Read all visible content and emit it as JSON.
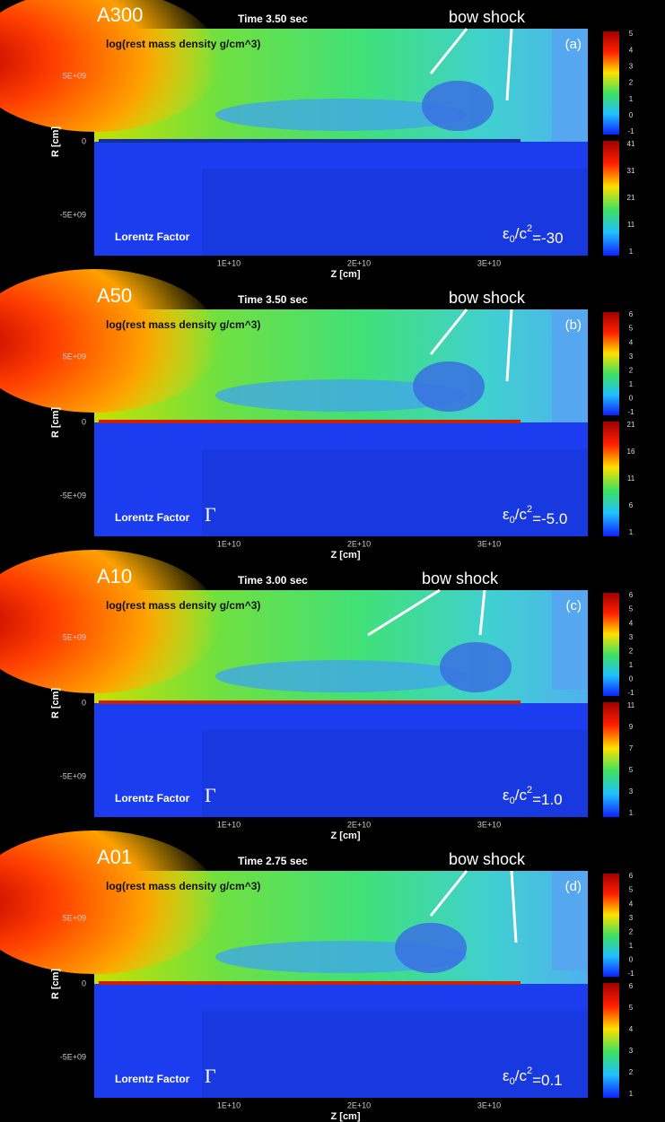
{
  "panels": [
    {
      "title": "A300",
      "time": "Time 3.50 sec",
      "annotation": "bow shock",
      "letter": "(a)",
      "density_label": "log(rest mass density g/cm^3)",
      "lorentz_label": "Lorentz Factor",
      "eps": [
        "ε",
        "0",
        "/c",
        "2",
        "=-30"
      ],
      "yticks": [
        "5E+09",
        "0",
        "-5E+09"
      ],
      "ylabel": "R [cm]",
      "xticks": [
        "1E+10",
        "2E+10",
        "3E+10"
      ],
      "xlabel": "Z [cm]",
      "density_colorbar": [
        "5",
        "4",
        "3",
        "2",
        "1",
        "0",
        "-1"
      ],
      "lorentz_colorbar": [
        "41",
        "31",
        "21",
        "11",
        "1"
      ]
    },
    {
      "title": "A50",
      "time": "Time 3.50 sec",
      "annotation": "bow shock",
      "letter": "(b)",
      "density_label": "log(rest mass density g/cm^3)",
      "lorentz_label": "Lorentz Factor",
      "gamma": "Γ",
      "eps": [
        "ε",
        "0",
        "/c",
        "2",
        "=-5.0"
      ],
      "yticks": [
        "5E+09",
        "0",
        "-5E+09"
      ],
      "ylabel": "R [cm]",
      "xticks": [
        "1E+10",
        "2E+10",
        "3E+10"
      ],
      "xlabel": "Z [cm]",
      "density_colorbar": [
        "6",
        "5",
        "4",
        "3",
        "2",
        "1",
        "0",
        "-1"
      ],
      "lorentz_colorbar": [
        "21",
        "16",
        "11",
        "6",
        "1"
      ]
    },
    {
      "title": "A10",
      "time": "Time 3.00 sec",
      "annotation": "bow shock",
      "letter": "(c)",
      "density_label": "log(rest mass density g/cm^3)",
      "lorentz_label": "Lorentz Factor",
      "gamma": "Γ",
      "eps": [
        "ε",
        "0",
        "/c",
        "2",
        "=1.0"
      ],
      "yticks": [
        "5E+09",
        "0",
        "-5E+09"
      ],
      "ylabel": "R [cm]",
      "xticks": [
        "1E+10",
        "2E+10",
        "3E+10"
      ],
      "xlabel": "Z [cm]",
      "density_colorbar": [
        "6",
        "5",
        "4",
        "3",
        "2",
        "1",
        "0",
        "-1"
      ],
      "lorentz_colorbar": [
        "11",
        "9",
        "7",
        "5",
        "3",
        "1"
      ]
    },
    {
      "title": "A01",
      "time": "Time 2.75 sec",
      "annotation": "bow shock",
      "letter": "(d)",
      "density_label": "log(rest mass density g/cm^3)",
      "lorentz_label": "Lorentz Factor",
      "gamma": "Γ",
      "eps": [
        "ε",
        "0",
        "/c",
        "2",
        "=0.1"
      ],
      "yticks": [
        "5E+09",
        "0",
        "-5E+09"
      ],
      "ylabel": "R [cm]",
      "xticks": [
        "1E+10",
        "2E+10",
        "3E+10"
      ],
      "xlabel": "Z [cm]",
      "density_colorbar": [
        "6",
        "5",
        "4",
        "3",
        "2",
        "1",
        "0",
        "-1"
      ],
      "lorentz_colorbar": [
        "6",
        "5",
        "4",
        "3",
        "2",
        "1"
      ]
    }
  ]
}
